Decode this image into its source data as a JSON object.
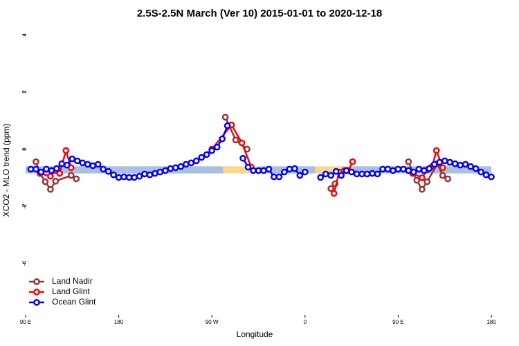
{
  "chart_data": {
    "type": "line",
    "title": "2.5S-2.5N March (Ver 10)   2015-01-01 to 2020-12-18",
    "xlabel": "Longitude",
    "ylabel": "XCO2 - MLO trend (ppm)",
    "xlim": [
      90,
      540
    ],
    "ylim": [
      -5.8,
      4.3
    ],
    "xticks": [
      {
        "value": 90,
        "label": "90 E"
      },
      180,
      {
        "value": 270,
        "label": "90 W"
      },
      {
        "value": 360,
        "label": "0"
      },
      {
        "value": 450,
        "label": "90 E"
      },
      {
        "value": 540,
        "label": "180"
      }
    ],
    "yticks": [
      -4,
      -2,
      0,
      2,
      4
    ],
    "legend": "bottom-left",
    "band_y": [
      -0.85,
      -0.6
    ],
    "bands": [
      {
        "x": [
          90,
          281
        ],
        "color": "#a9c0e1"
      },
      {
        "x": [
          281,
          316
        ],
        "color": "#fbd98a"
      },
      {
        "x": [
          316,
          370
        ],
        "color": "#a9c0e1"
      },
      {
        "x": [
          370,
          406
        ],
        "color": "#fbd98a"
      },
      {
        "x": [
          406,
          540
        ],
        "color": "#a9c0e1"
      }
    ],
    "series": [
      {
        "name": "Land Nadir",
        "color": "#993333",
        "x": [
          100,
          104,
          109,
          114,
          119,
          134,
          139,
          200,
          283,
          293,
          304,
          350,
          385,
          389,
          420,
          460,
          464,
          468,
          473,
          478,
          488,
          493,
          498
        ],
        "values": [
          -0.44,
          -0.85,
          -1.14,
          -1.41,
          -1.12,
          -0.92,
          -1.04,
          null,
          1.12,
          0.32,
          0.0,
          null,
          -1.38,
          -1.21,
          null,
          -0.44,
          -0.8,
          -1.09,
          -1.41,
          -1.14,
          -0.51,
          -0.92,
          -1.04
        ]
      },
      {
        "name": "Land Glint",
        "color": "#ff0000",
        "x": [
          104,
          114,
          119,
          123,
          129,
          134,
          200,
          270,
          289,
          299,
          308,
          350,
          388,
          393,
          398,
          402,
          406,
          430,
          464,
          473,
          478,
          483,
          487,
          493
        ],
        "values": [
          -0.85,
          -0.95,
          -0.75,
          -0.85,
          -0.05,
          -0.65,
          null,
          0.0,
          0.85,
          0.22,
          -0.63,
          null,
          -1.55,
          -0.8,
          -0.75,
          -0.75,
          -0.44,
          null,
          -0.85,
          -1.0,
          -0.73,
          -0.6,
          -0.05,
          -0.65
        ]
      },
      {
        "name": "Ocean Glint",
        "color": "#0000ff",
        "x": [
          95,
          100,
          105,
          110,
          115,
          120,
          125,
          130,
          135,
          140,
          145,
          150,
          155,
          160,
          165,
          170,
          175,
          180,
          185,
          190,
          195,
          200,
          205,
          210,
          215,
          220,
          225,
          230,
          235,
          240,
          245,
          250,
          255,
          260,
          265,
          270,
          275,
          280,
          285,
          290,
          300,
          305,
          310,
          315,
          320,
          325,
          330,
          335,
          340,
          345,
          350,
          355,
          360,
          365,
          375,
          380,
          385,
          390,
          395,
          400,
          405,
          410,
          415,
          420,
          425,
          430,
          435,
          440,
          445,
          450,
          455,
          460,
          465,
          470,
          475,
          480,
          485,
          490,
          495,
          500,
          505,
          510,
          515,
          520,
          525,
          530,
          535,
          540
        ],
        "values": [
          -0.7,
          -0.7,
          -0.8,
          -0.7,
          -0.75,
          -0.68,
          -0.51,
          -0.56,
          -0.34,
          -0.41,
          -0.48,
          -0.53,
          -0.58,
          -0.53,
          -0.7,
          -0.78,
          -0.9,
          -0.99,
          -0.97,
          -0.99,
          -0.99,
          -0.95,
          -0.87,
          -0.9,
          -0.85,
          -0.8,
          -0.75,
          -0.68,
          -0.65,
          -0.61,
          -0.53,
          -0.48,
          -0.41,
          -0.29,
          -0.19,
          -0.05,
          0.07,
          0.36,
          0.82,
          null,
          -0.32,
          -0.63,
          -0.75,
          -0.75,
          -0.75,
          -0.7,
          -0.97,
          -0.97,
          -0.8,
          -0.7,
          -0.68,
          -0.92,
          -0.8,
          null,
          -0.99,
          -0.87,
          -0.92,
          -0.78,
          -0.92,
          -0.75,
          -0.8,
          -0.87,
          -0.87,
          -0.87,
          -0.85,
          -0.87,
          -0.7,
          -0.7,
          -0.75,
          -0.7,
          -0.7,
          -0.75,
          -0.8,
          -0.7,
          -0.75,
          -0.68,
          -0.53,
          -0.46,
          -0.41,
          -0.46,
          -0.51,
          -0.56,
          -0.53,
          -0.61,
          -0.68,
          -0.8,
          -0.9,
          -0.97
        ]
      }
    ]
  }
}
